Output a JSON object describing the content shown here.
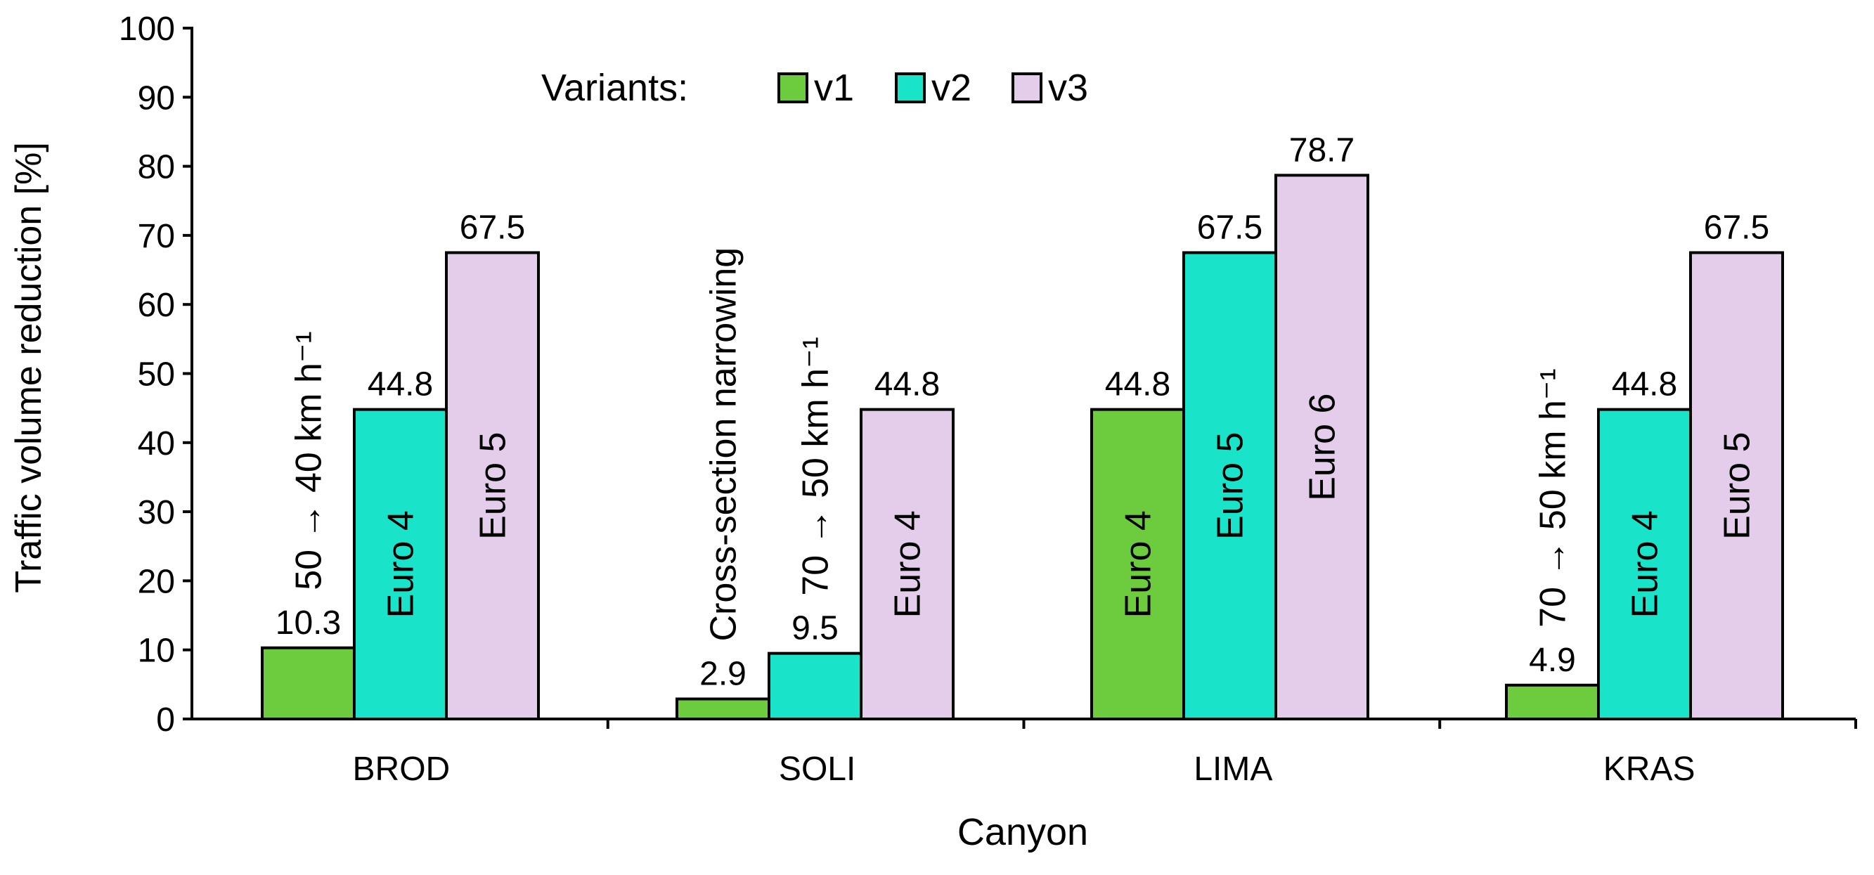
{
  "chart_data": {
    "type": "bar",
    "title": "",
    "xlabel": "Canyon",
    "ylabel": "Traffic volume reduction [%]",
    "ylim": [
      0,
      100
    ],
    "yticks": [
      "0",
      "10",
      "20",
      "30",
      "40",
      "50",
      "60",
      "70",
      "80",
      "90",
      "100"
    ],
    "grid": false,
    "categories": [
      "BROD",
      "SOLI",
      "LIMA",
      "KRAS"
    ],
    "legend": {
      "title": "Variants:",
      "placement": "top-left",
      "entries": [
        "v1",
        "v2",
        "v3"
      ]
    },
    "colors": {
      "v1": "#6ccc3e",
      "v2": "#19e3c8",
      "v3": "#e3cdea",
      "border": "#000000"
    },
    "series": [
      {
        "name": "v1",
        "values": [
          10.3,
          2.9,
          44.8,
          4.9
        ],
        "value_labels": [
          "10.3",
          "2.9",
          "44.8",
          "4.9"
        ],
        "annotations": [
          "50 → 40 km h⁻¹",
          "Cross-section narrowing",
          "Euro 4",
          "70 → 50 km h⁻¹"
        ]
      },
      {
        "name": "v2",
        "values": [
          44.8,
          9.5,
          67.5,
          44.8
        ],
        "value_labels": [
          "44.8",
          "9.5",
          "67.5",
          "44.8"
        ],
        "annotations": [
          "Euro 4",
          "70 → 50 km h⁻¹",
          "Euro 5",
          "Euro 4"
        ]
      },
      {
        "name": "v3",
        "values": [
          67.5,
          44.8,
          78.7,
          67.5
        ],
        "value_labels": [
          "67.5",
          "44.8",
          "78.7",
          "67.5"
        ],
        "annotations": [
          "Euro 5",
          "Euro 4",
          "Euro 6",
          "Euro 5"
        ]
      }
    ]
  }
}
